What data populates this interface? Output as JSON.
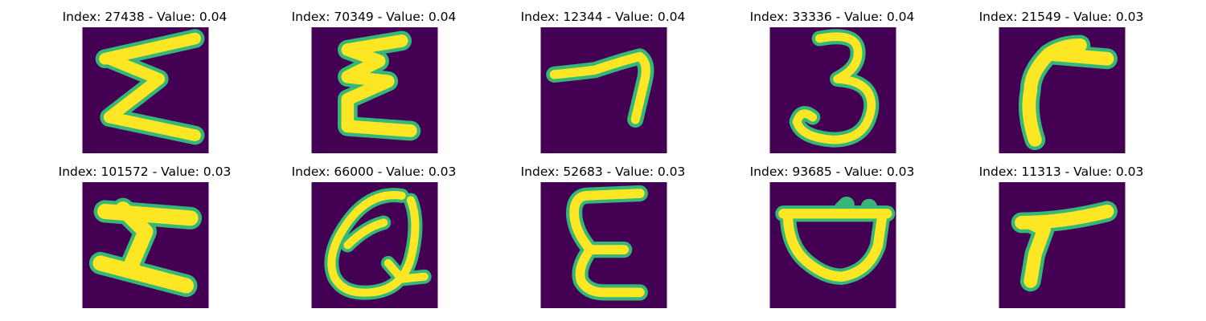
{
  "colors": {
    "background": "#440154",
    "mid": "#21918c",
    "edge": "#35b779",
    "stroke": "#fde725"
  },
  "samples": [
    {
      "title": "Index: 27438 - Value: 0.04",
      "glyph": "sigma-like-zigzag"
    },
    {
      "title": "Index: 70349 - Value: 0.04",
      "glyph": "sigma-like-zigzag-narrow"
    },
    {
      "title": "Index: 12344 - Value: 0.04",
      "glyph": "hook-seven"
    },
    {
      "title": "Index: 33336 - Value: 0.04",
      "glyph": "digit-three"
    },
    {
      "title": "Index: 21549 - Value: 0.03",
      "glyph": "hook-curve"
    },
    {
      "title": "Index: 101572 - Value: 0.03",
      "glyph": "z-bold"
    },
    {
      "title": "Index: 66000 - Value: 0.03",
      "glyph": "looped-q"
    },
    {
      "title": "Index: 52683 - Value: 0.03",
      "glyph": "letter-e"
    },
    {
      "title": "Index: 93685 - Value: 0.03",
      "glyph": "bowl-shape"
    },
    {
      "title": "Index: 11313 - Value: 0.03",
      "glyph": "hook-seven-bold"
    }
  ]
}
